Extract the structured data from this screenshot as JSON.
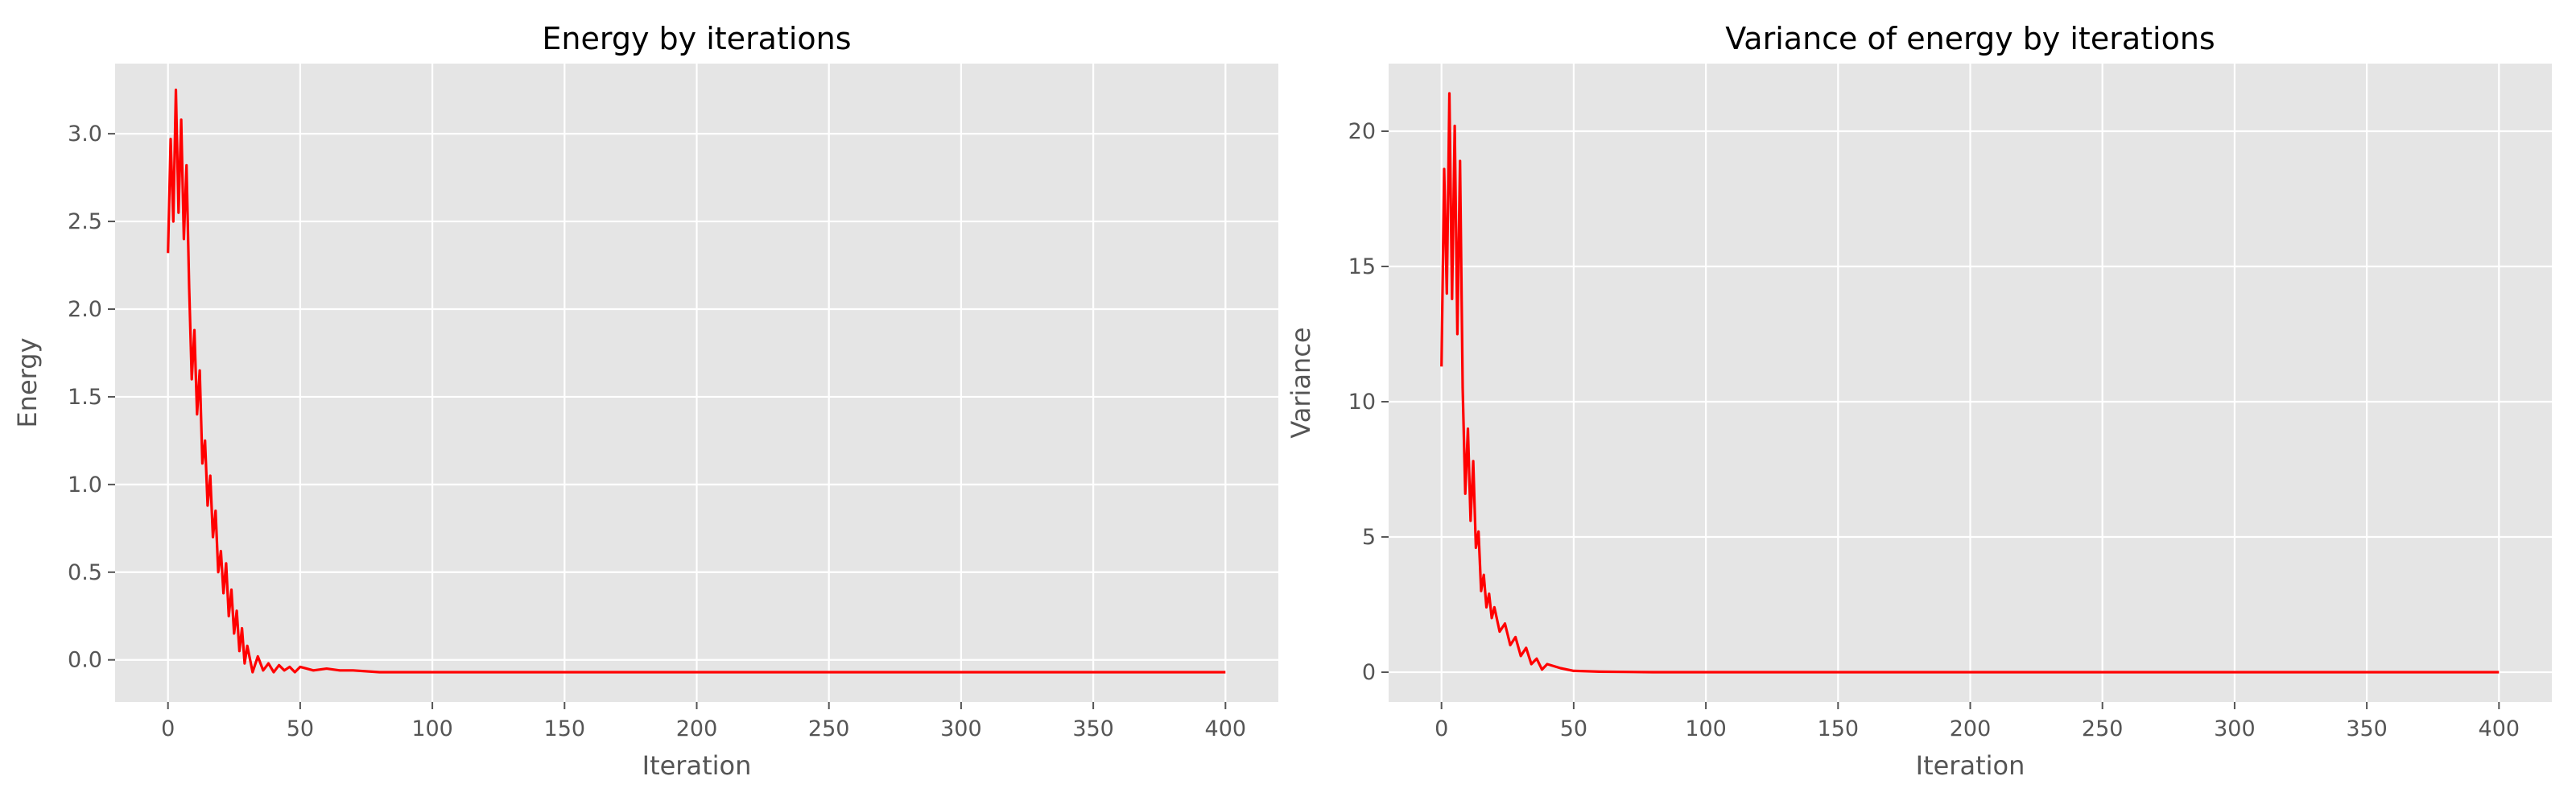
{
  "chart_data": [
    {
      "type": "line",
      "title": "Energy by iterations",
      "xlabel": "Iteration",
      "ylabel": "Energy",
      "xlim": [
        -20,
        420
      ],
      "ylim": [
        -0.24,
        3.4
      ],
      "xticks": [
        0,
        50,
        100,
        150,
        200,
        250,
        300,
        350,
        400
      ],
      "yticks": [
        0.0,
        0.5,
        1.0,
        1.5,
        2.0,
        2.5,
        3.0
      ],
      "ytick_labels": [
        "0.0",
        "0.5",
        "1.0",
        "1.5",
        "2.0",
        "2.5",
        "3.0"
      ],
      "grid": true,
      "background": "#e5e5e5",
      "line_color": "#ff0000",
      "series": [
        {
          "x": [
            0,
            1,
            2,
            3,
            4,
            5,
            6,
            7,
            8,
            9,
            10,
            11,
            12,
            13,
            14,
            15,
            16,
            17,
            18,
            19,
            20,
            21,
            22,
            23,
            24,
            25,
            26,
            27,
            28,
            29,
            30,
            32,
            34,
            36,
            38,
            40,
            42,
            44,
            46,
            48,
            50,
            55,
            60,
            65,
            70,
            80,
            90,
            100,
            150,
            200,
            250,
            300,
            350,
            400
          ],
          "y": [
            2.32,
            2.97,
            2.5,
            3.25,
            2.55,
            3.08,
            2.4,
            2.82,
            2.12,
            1.6,
            1.88,
            1.4,
            1.65,
            1.12,
            1.25,
            0.88,
            1.05,
            0.7,
            0.85,
            0.5,
            0.62,
            0.38,
            0.55,
            0.25,
            0.4,
            0.15,
            0.28,
            0.05,
            0.18,
            -0.02,
            0.08,
            -0.07,
            0.02,
            -0.06,
            -0.02,
            -0.07,
            -0.03,
            -0.06,
            -0.04,
            -0.07,
            -0.04,
            -0.06,
            -0.05,
            -0.06,
            -0.06,
            -0.07,
            -0.07,
            -0.07,
            -0.07,
            -0.07,
            -0.07,
            -0.07,
            -0.07,
            -0.07
          ]
        }
      ]
    },
    {
      "type": "line",
      "title": "Variance of energy by iterations",
      "xlabel": "Iteration",
      "ylabel": "Variance",
      "xlim": [
        -20,
        420
      ],
      "ylim": [
        -1.1,
        22.5
      ],
      "xticks": [
        0,
        50,
        100,
        150,
        200,
        250,
        300,
        350,
        400
      ],
      "yticks": [
        0,
        5,
        10,
        15,
        20
      ],
      "ytick_labels": [
        "0",
        "5",
        "10",
        "15",
        "20"
      ],
      "grid": true,
      "background": "#e5e5e5",
      "line_color": "#ff0000",
      "series": [
        {
          "x": [
            0,
            1,
            2,
            3,
            4,
            5,
            6,
            7,
            8,
            9,
            10,
            11,
            12,
            13,
            14,
            15,
            16,
            17,
            18,
            19,
            20,
            22,
            24,
            26,
            28,
            30,
            32,
            34,
            36,
            38,
            40,
            45,
            50,
            60,
            70,
            80,
            100,
            150,
            200,
            250,
            300,
            350,
            400
          ],
          "y": [
            11.3,
            18.6,
            14.0,
            21.4,
            13.8,
            20.2,
            12.5,
            18.9,
            10.5,
            6.6,
            9.0,
            5.6,
            7.8,
            4.6,
            5.2,
            3.0,
            3.6,
            2.4,
            2.9,
            2.0,
            2.4,
            1.5,
            1.8,
            1.0,
            1.3,
            0.6,
            0.9,
            0.3,
            0.5,
            0.1,
            0.3,
            0.15,
            0.05,
            0.02,
            0.01,
            0.0,
            0.0,
            0.0,
            0.0,
            0.0,
            0.0,
            0.0,
            0.0
          ]
        }
      ]
    }
  ]
}
